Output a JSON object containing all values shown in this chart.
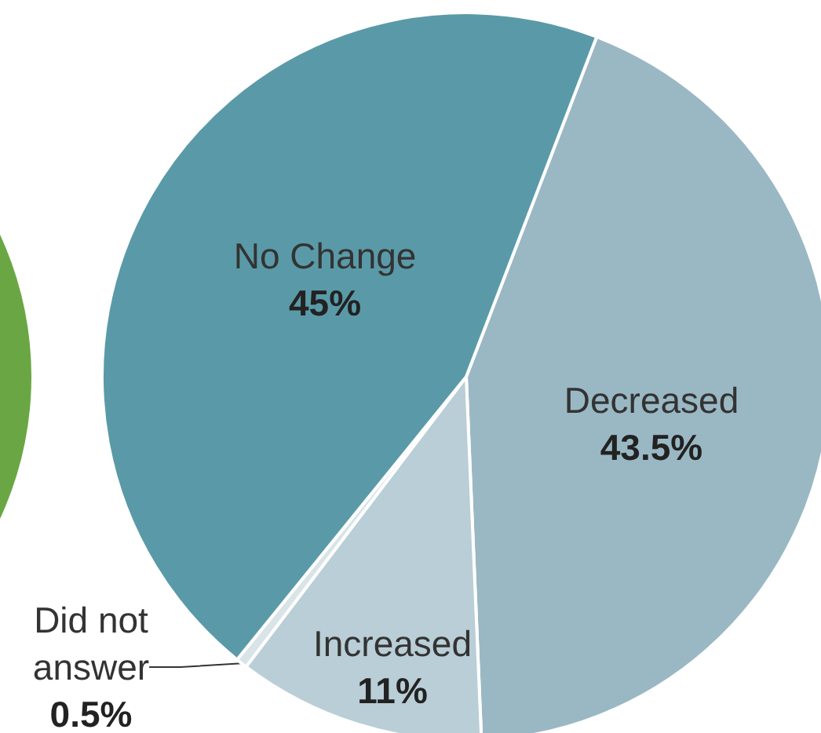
{
  "chart_data": {
    "type": "pie",
    "categories": [
      "Decreased",
      "Increased",
      "Did not answer",
      "No Change"
    ],
    "values": [
      43.5,
      11,
      0.5,
      45
    ],
    "value_labels": [
      "43.5%",
      "11%",
      "0.5%",
      "45%"
    ],
    "colors": [
      "#9ab8c4",
      "#b9ced6",
      "#d8e4e8",
      "#5a9aa8"
    ],
    "legend": false
  }
}
